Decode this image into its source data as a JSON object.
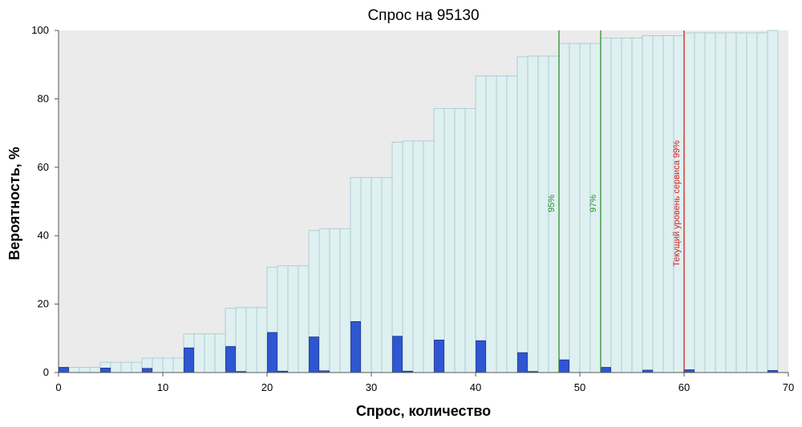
{
  "chart_data": {
    "type": "bar",
    "title": "Спрос на 95130",
    "xlabel": "Спрос, количество",
    "ylabel": "Вероятность, %",
    "xlim": [
      0,
      70
    ],
    "ylim": [
      0,
      100
    ],
    "x_ticks": [
      0,
      10,
      20,
      30,
      40,
      50,
      60,
      70
    ],
    "y_ticks": [
      0,
      20,
      40,
      60,
      80,
      100
    ],
    "grid": false,
    "background": "#ebebeb",
    "series": [
      {
        "kind": "cumulative",
        "color": "#dff0f0",
        "edge_color": "#a9c9d4",
        "x": [
          0,
          1,
          2,
          3,
          4,
          5,
          6,
          7,
          8,
          9,
          10,
          11,
          12,
          13,
          14,
          15,
          16,
          17,
          18,
          19,
          20,
          21,
          22,
          23,
          24,
          25,
          26,
          27,
          28,
          29,
          30,
          31,
          32,
          33,
          34,
          35,
          36,
          37,
          38,
          39,
          40,
          41,
          42,
          43,
          44,
          45,
          46,
          47,
          48,
          49,
          50,
          51,
          52,
          53,
          54,
          55,
          56,
          57,
          58,
          59,
          60,
          61,
          62,
          63,
          64,
          65,
          66,
          67,
          68
        ],
        "values": [
          1.5,
          1.5,
          1.5,
          1.5,
          3.0,
          3.0,
          3.0,
          3.0,
          4.2,
          4.2,
          4.2,
          4.2,
          11.3,
          11.3,
          11.3,
          11.3,
          18.8,
          19.0,
          19.0,
          19.0,
          30.8,
          31.2,
          31.2,
          31.2,
          41.5,
          42.0,
          42.0,
          42.0,
          57.0,
          57.0,
          57.0,
          57.0,
          67.3,
          67.7,
          67.7,
          67.7,
          77.2,
          77.2,
          77.2,
          77.2,
          86.7,
          86.7,
          86.7,
          86.7,
          92.3,
          92.5,
          92.5,
          92.5,
          96.2,
          96.2,
          96.2,
          96.2,
          97.8,
          97.8,
          97.8,
          97.8,
          98.5,
          98.5,
          98.5,
          98.5,
          99.3,
          99.3,
          99.3,
          99.3,
          99.3,
          99.3,
          99.3,
          99.3,
          100.0
        ]
      },
      {
        "kind": "probability",
        "color": "#2e56d3",
        "edge_color": "#1a2f8c",
        "x": [
          0,
          4,
          8,
          12,
          16,
          17,
          20,
          21,
          24,
          25,
          28,
          32,
          33,
          36,
          40,
          44,
          45,
          48,
          52,
          56,
          60,
          68
        ],
        "values": [
          1.5,
          1.3,
          1.2,
          7.2,
          7.6,
          0.3,
          11.7,
          0.4,
          10.4,
          0.5,
          14.9,
          10.6,
          0.4,
          9.5,
          9.3,
          5.8,
          0.3,
          3.7,
          1.5,
          0.7,
          0.8,
          0.6
        ]
      }
    ],
    "reference_lines": [
      {
        "x": 48,
        "label": "95%",
        "color": "#2f8f2f"
      },
      {
        "x": 52,
        "label": "97%",
        "color": "#2f8f2f"
      },
      {
        "x": 60,
        "label": "Текущий уровень сервиса 99%",
        "color": "#d42020"
      }
    ]
  }
}
